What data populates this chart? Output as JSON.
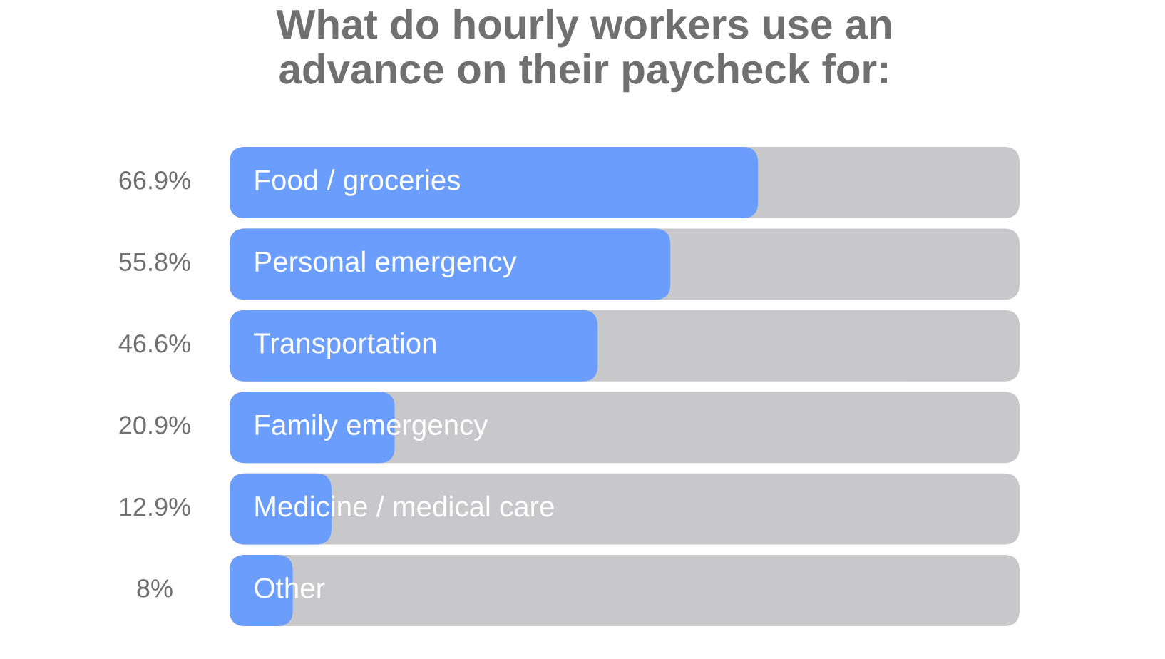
{
  "chart_data": {
    "type": "bar",
    "orientation": "horizontal",
    "title": "What do hourly workers use an\nadvance on their paycheck for:",
    "categories": [
      "Food / groceries",
      "Personal emergency",
      "Transportation",
      "Family emergency",
      "Medicine / medical care",
      "Other"
    ],
    "values": [
      66.9,
      55.8,
      46.6,
      20.9,
      12.9,
      8
    ],
    "value_labels": [
      "66.9%",
      "55.8%",
      "46.6%",
      "20.9%",
      "12.9%",
      "8%"
    ],
    "color": "#6b9efc",
    "xlim": [
      0,
      100
    ],
    "tick_labels": false
  }
}
